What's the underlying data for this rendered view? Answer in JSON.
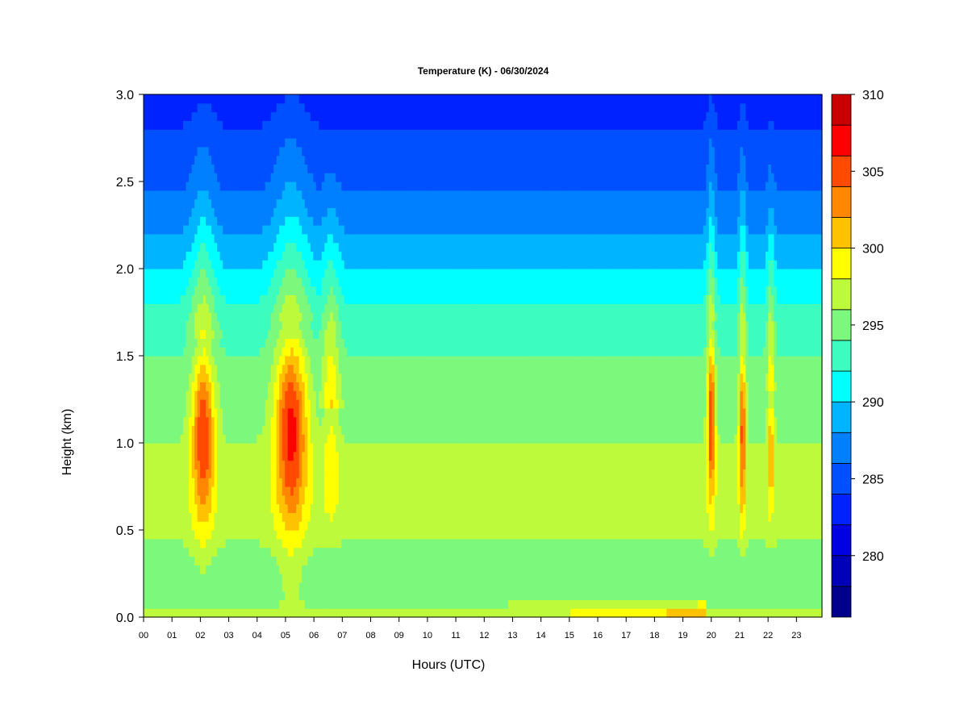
{
  "chart_data": {
    "type": "heatmap",
    "title": "Temperature (K) - 06/30/2024",
    "xlabel": "Hours (UTC)",
    "ylabel": "Height (km)",
    "x_ticks": [
      "00",
      "01",
      "02",
      "03",
      "04",
      "05",
      "06",
      "07",
      "08",
      "09",
      "10",
      "11",
      "12",
      "13",
      "14",
      "15",
      "16",
      "17",
      "18",
      "19",
      "20",
      "21",
      "22",
      "23"
    ],
    "xlim": [
      0,
      23.9
    ],
    "y_ticks": [
      "0.0",
      "0.5",
      "1.0",
      "1.5",
      "2.0",
      "2.5",
      "3.0"
    ],
    "ylim": [
      0,
      3.0
    ],
    "colorbar": {
      "levels": [
        276,
        278,
        280,
        282,
        284,
        286,
        288,
        290,
        292,
        294,
        296,
        298,
        300,
        302,
        304,
        306,
        308,
        310
      ],
      "colors": [
        "#00008C",
        "#0000B8",
        "#0000E0",
        "#0022FF",
        "#0050FF",
        "#0080FF",
        "#00B4FF",
        "#00FFFF",
        "#3CFCC0",
        "#7CF87C",
        "#BEFA3C",
        "#FFFF00",
        "#FFC200",
        "#FF8800",
        "#FF4A00",
        "#FF0000",
        "#C80000",
        "#8C0000"
      ],
      "tick_labels": [
        "280",
        "285",
        "290",
        "295",
        "300",
        "305",
        "310"
      ]
    },
    "profile": {
      "heights_km": [
        0.0,
        0.1,
        0.3,
        0.5,
        0.7,
        0.9,
        1.1,
        1.3,
        1.5,
        1.7,
        1.9,
        2.1,
        2.3,
        2.5,
        2.7,
        2.9,
        3.0
      ],
      "background_K": [
        296.5,
        295.5,
        295.0,
        296.5,
        297.0,
        296.5,
        295.5,
        295.0,
        294.0,
        293.0,
        291.0,
        289.0,
        287.0,
        285.5,
        284.5,
        283.5,
        283.0
      ]
    },
    "warm_events": [
      {
        "center_hour": 2.1,
        "width_h": 1.0,
        "peak_K": 306,
        "base_km": 0.45,
        "top_km": 1.6
      },
      {
        "center_hour": 5.2,
        "width_h": 1.4,
        "peak_K": 307,
        "base_km": 0.4,
        "top_km": 1.7
      },
      {
        "center_hour": 6.6,
        "width_h": 0.7,
        "peak_K": 300,
        "base_km": 0.5,
        "top_km": 1.2
      },
      {
        "center_hour": 20.0,
        "width_h": 0.35,
        "peak_K": 306,
        "base_km": 0.55,
        "top_km": 1.7
      },
      {
        "center_hour": 21.1,
        "width_h": 0.3,
        "peak_K": 305,
        "base_km": 0.5,
        "top_km": 1.6
      },
      {
        "center_hour": 22.1,
        "width_h": 0.3,
        "peak_K": 302,
        "base_km": 0.55,
        "top_km": 1.3
      }
    ],
    "surface_warm_layer": {
      "start_hour": 12.0,
      "end_hour": 19.8,
      "peak_K": 302,
      "top_km": 0.12
    }
  }
}
